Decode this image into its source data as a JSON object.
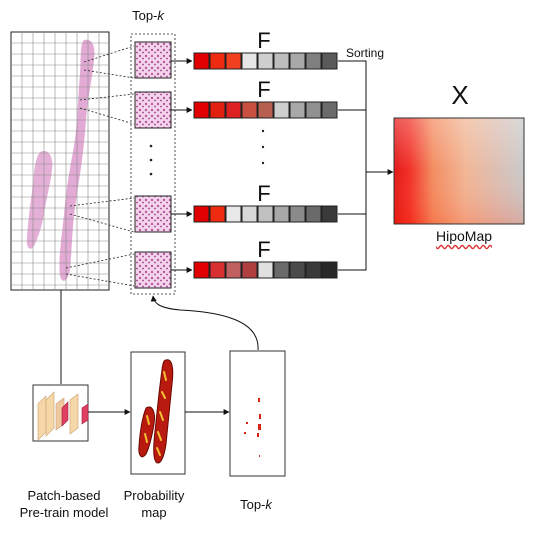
{
  "diagram": {
    "labels": {
      "top_k_header_prefix": "Top-",
      "top_k_header_k": "k",
      "sorting": "Sorting",
      "x_symbol": "X",
      "hipomap": "HipoMap",
      "f_symbol": "F",
      "model_line1": "Patch-based",
      "model_line2": "Pre-train model",
      "prob_line1": "Probability",
      "prob_line2": "map",
      "top_k_bottom_prefix": "Top-",
      "top_k_bottom_k": "k"
    },
    "feature_rows": [
      {
        "name": "feature-row-1",
        "colors": [
          "#e00000",
          "#ee2a10",
          "#f04020",
          "#e6e6e6",
          "#cfcfcf",
          "#bdbdbd",
          "#a8a8a8",
          "#808080",
          "#5a5a5a"
        ]
      },
      {
        "name": "feature-row-2",
        "colors": [
          "#e00000",
          "#e22010",
          "#dd2020",
          "#c85040",
          "#b86050",
          "#cfcfcf",
          "#a8a8a8",
          "#909090",
          "#6a6a6a"
        ]
      },
      {
        "name": "feature-row-3",
        "colors": [
          "#e00000",
          "#ee2a10",
          "#e8e8e8",
          "#d8d8d8",
          "#c0c0c0",
          "#a8a8a8",
          "#8a8a8a",
          "#6a6a6a",
          "#3a3a3a"
        ]
      },
      {
        "name": "feature-row-4",
        "colors": [
          "#e00000",
          "#d83030",
          "#c06060",
          "#b04040",
          "#e0e0e0",
          "#6a6a6a",
          "#4a4a4a",
          "#3a3a3a",
          "#282828"
        ]
      }
    ],
    "colors": {
      "accent_red": "#e00000",
      "tissue_pink": "#d98ec8",
      "grid_line": "#8a8a8a"
    }
  }
}
